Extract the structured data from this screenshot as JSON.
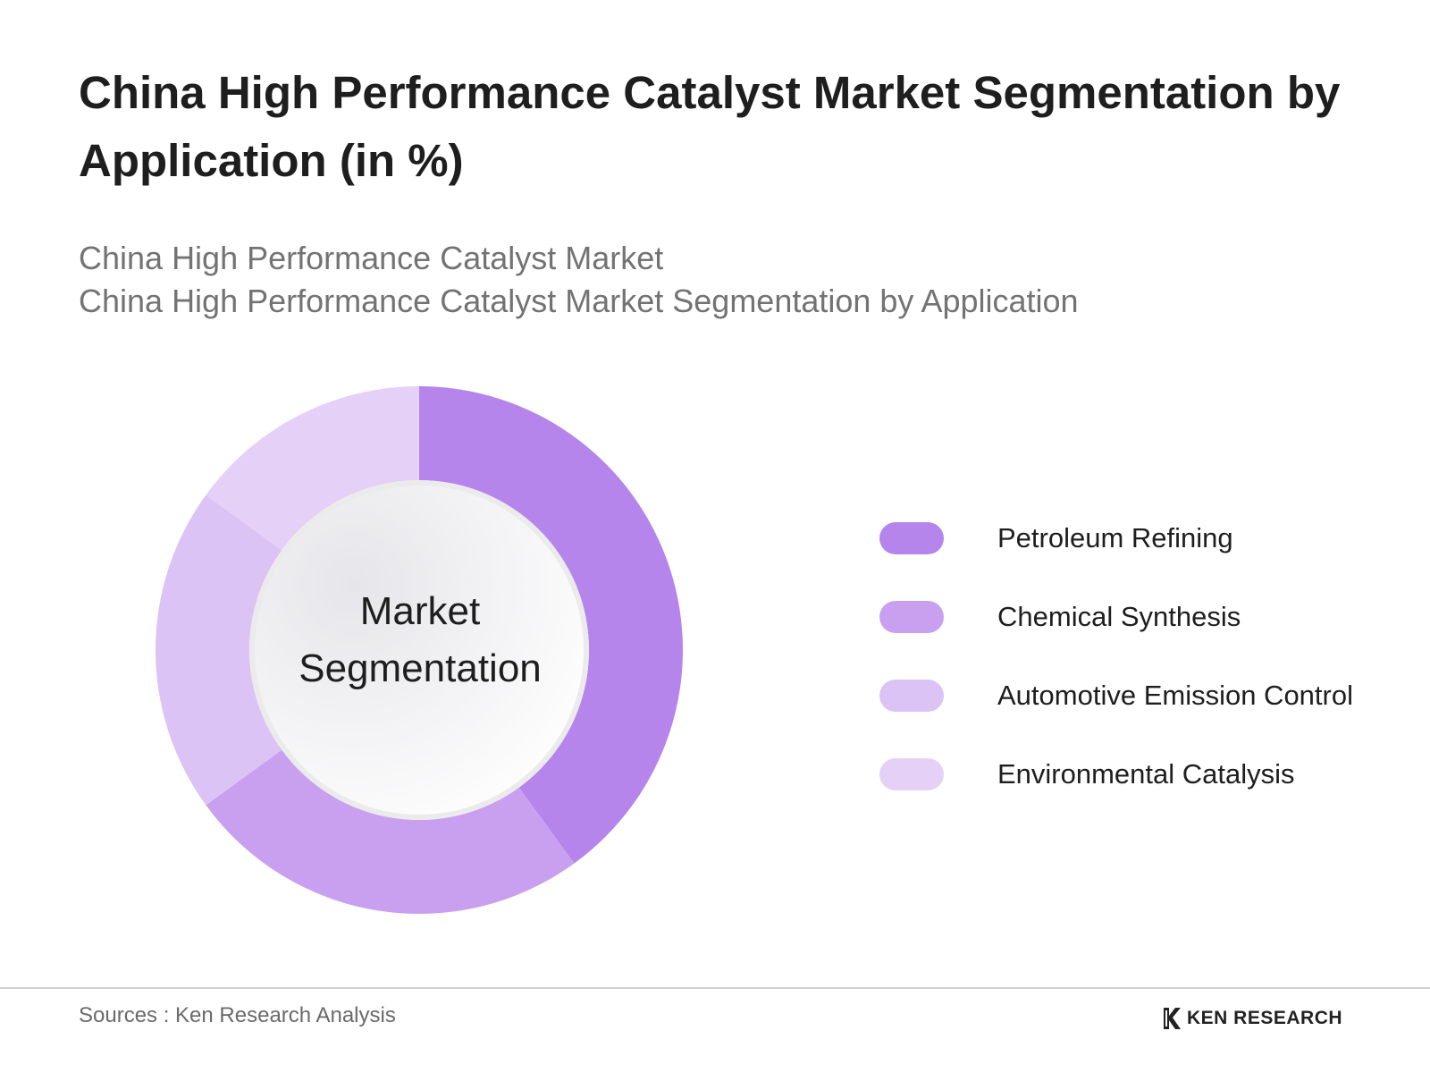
{
  "chart_data": {
    "type": "pie",
    "title": "China High Performance Catalyst Market Segmentation by Application (in %)",
    "subtitle_lines": [
      "China High Performance Catalyst Market",
      "China High Performance Catalyst Market Segmentation by Application"
    ],
    "center_label_lines": [
      "Market",
      "Segmentation"
    ],
    "categories": [
      "Petroleum Refining",
      "Chemical Synthesis",
      "Automotive Emission Control",
      "Environmental Catalysis"
    ],
    "values": [
      40,
      25,
      20,
      15
    ],
    "colors": [
      "#b585ec",
      "#c9a0ef",
      "#dcc3f5",
      "#e5d0f7"
    ],
    "legend_position": "right"
  },
  "footer": {
    "source": "Sources : Ken Research Analysis",
    "brand": "KEN RESEARCH",
    "brand_icon": "ken-research-logo-icon"
  }
}
